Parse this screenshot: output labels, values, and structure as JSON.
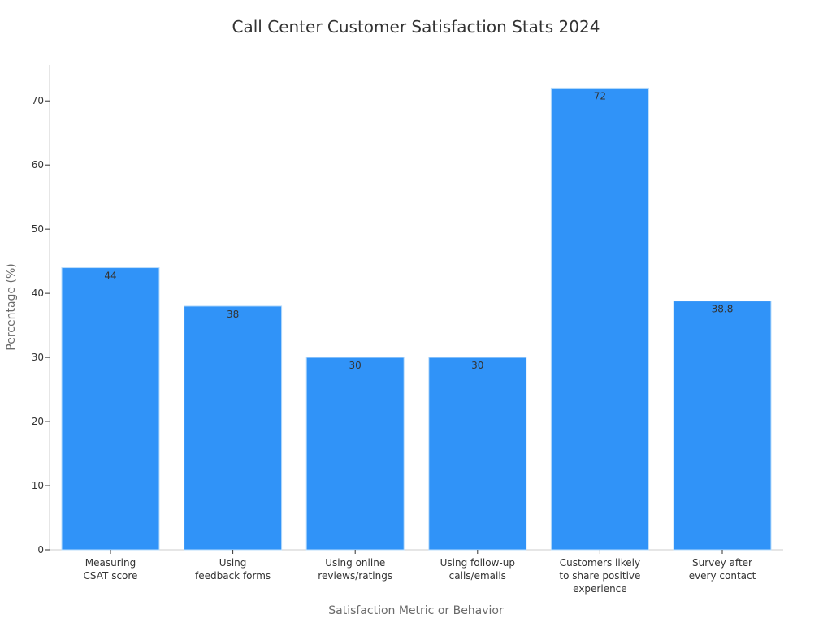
{
  "chart_data": {
    "type": "bar",
    "title": "Call Center Customer Satisfaction Stats 2024",
    "xlabel": "Satisfaction Metric or Behavior",
    "ylabel": "Percentage (%)",
    "categories": [
      [
        "Measuring",
        "CSAT score"
      ],
      [
        "Using",
        "feedback forms"
      ],
      [
        "Using online",
        "reviews/ratings"
      ],
      [
        "Using follow-up",
        "calls/emails"
      ],
      [
        "Customers likely",
        "to share positive",
        "experience"
      ],
      [
        "Survey after",
        "every contact"
      ]
    ],
    "values": [
      44,
      38,
      30,
      30,
      72,
      38.8
    ],
    "value_labels": [
      "44",
      "38",
      "30",
      "30",
      "72",
      "38.8"
    ],
    "ylim": [
      0,
      75.6
    ],
    "yticks": [
      0,
      10,
      20,
      30,
      40,
      50,
      60,
      70
    ],
    "grid": false,
    "bar_color": "#3093f8"
  }
}
